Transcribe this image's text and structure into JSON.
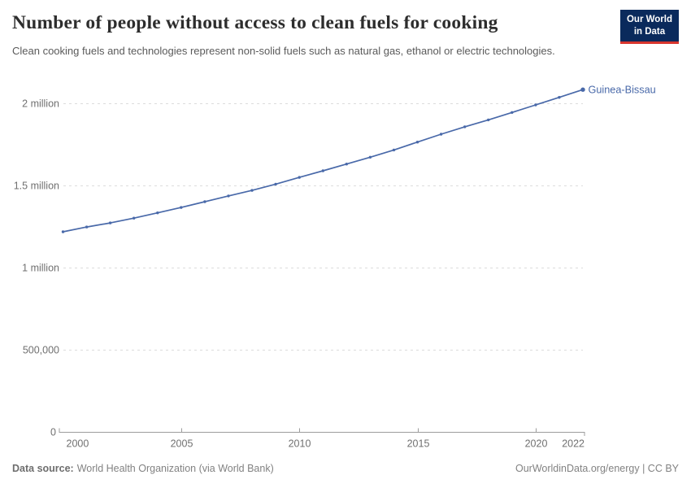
{
  "header": {
    "title": "Number of people without access to clean fuels for cooking",
    "subtitle": "Clean cooking fuels and technologies represent non-solid fuels such as natural gas, ethanol or electric technologies."
  },
  "logo": {
    "line1": "Our World",
    "line2": "in Data",
    "bg_color": "#0a2a5c",
    "accent_color": "#d8352e"
  },
  "chart_data": {
    "type": "line",
    "title": "Number of people without access to clean fuels for cooking",
    "entity_label": "Guinea-Bissau",
    "x": [
      2000,
      2001,
      2002,
      2003,
      2004,
      2005,
      2006,
      2007,
      2008,
      2009,
      2010,
      2011,
      2012,
      2013,
      2014,
      2015,
      2016,
      2017,
      2018,
      2019,
      2020,
      2021,
      2022
    ],
    "series": [
      {
        "name": "Guinea-Bissau",
        "values": [
          1218000,
          1247000,
          1272000,
          1301000,
          1333000,
          1366000,
          1401000,
          1436000,
          1470000,
          1508000,
          1549000,
          1589000,
          1630000,
          1672000,
          1716000,
          1764000,
          1812000,
          1857000,
          1899000,
          1944000,
          1990000,
          2036000,
          2083000
        ]
      }
    ],
    "xlabel": "",
    "ylabel": "",
    "xlim": [
      2000,
      2022
    ],
    "ylim": [
      0,
      2100000
    ],
    "grid": true,
    "legend_position": "end-of-line",
    "line_color": "#4969a9",
    "y_ticks": [
      {
        "value": 0,
        "label": "0"
      },
      {
        "value": 500000,
        "label": "500,000"
      },
      {
        "value": 1000000,
        "label": "1 million"
      },
      {
        "value": 1500000,
        "label": "1.5 million"
      },
      {
        "value": 2000000,
        "label": "2 million"
      }
    ],
    "x_ticks": [
      2000,
      2005,
      2010,
      2015,
      2020,
      2022
    ]
  },
  "footer": {
    "source_label": "Data source:",
    "source_text": "World Health Organization (via World Bank)",
    "link_text": "OurWorldinData.org/energy | CC BY"
  }
}
